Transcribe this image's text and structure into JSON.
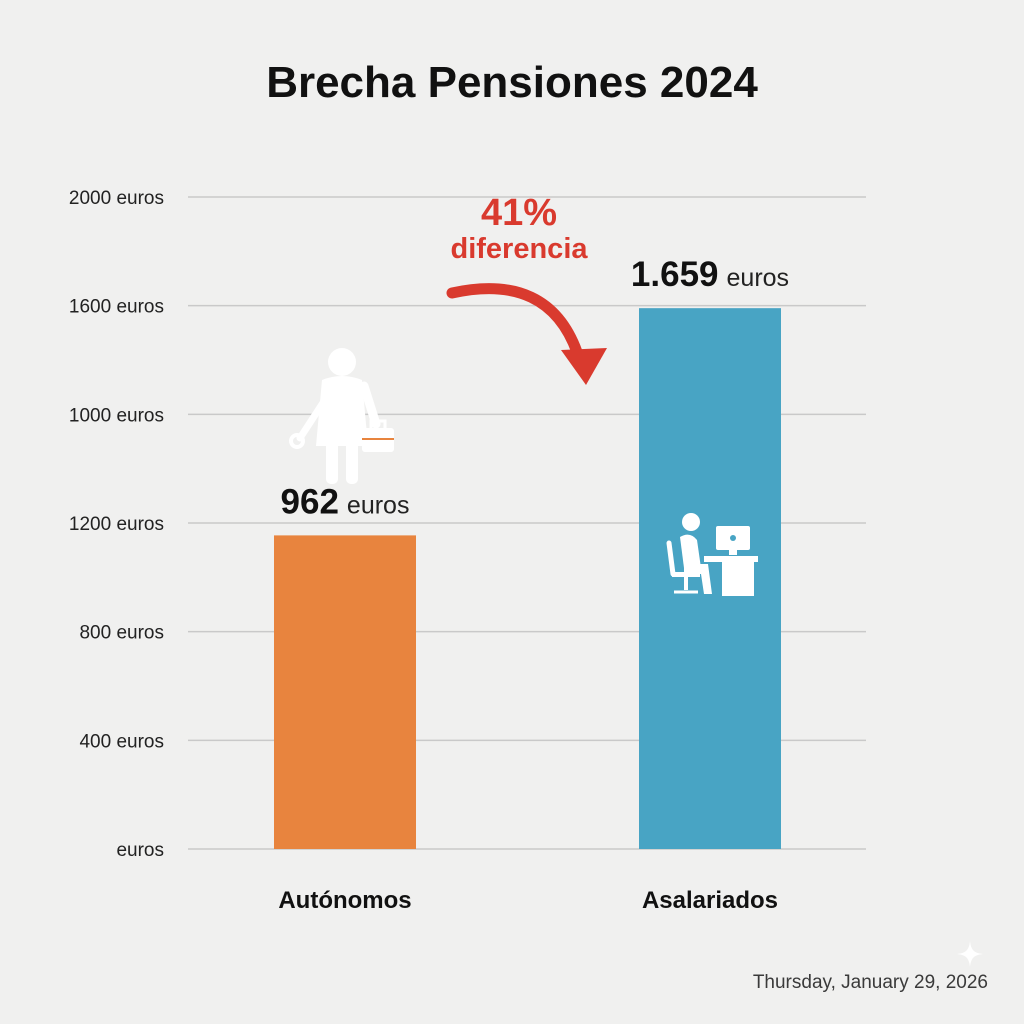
{
  "chart_data": {
    "type": "bar",
    "title": "Brecha Pensiones 2024",
    "categories": [
      "Autónomos",
      "Asalariados"
    ],
    "values": [
      962,
      1659
    ],
    "value_labels": [
      {
        "number": "962",
        "unit": "euros"
      },
      {
        "number": "1.659",
        "unit": "euros"
      }
    ],
    "bar_colors": [
      "#e8843e",
      "#48a4c4"
    ],
    "bar_icons": [
      "worker-with-wrench-and-toolbox-icon",
      "office-worker-at-computer-icon"
    ],
    "y_tick_labels": [
      "2000 euros",
      "1600 euros",
      "1000 euros",
      "1200 euros",
      "800 euros",
      "400 euros",
      "euros"
    ],
    "ylim": [
      0,
      2000
    ],
    "grid": true,
    "annotation": {
      "percent": "41%",
      "text": "diferencia",
      "color": "#d93a2e"
    }
  },
  "footer": {
    "date": "Thursday, January 29, 2026"
  }
}
